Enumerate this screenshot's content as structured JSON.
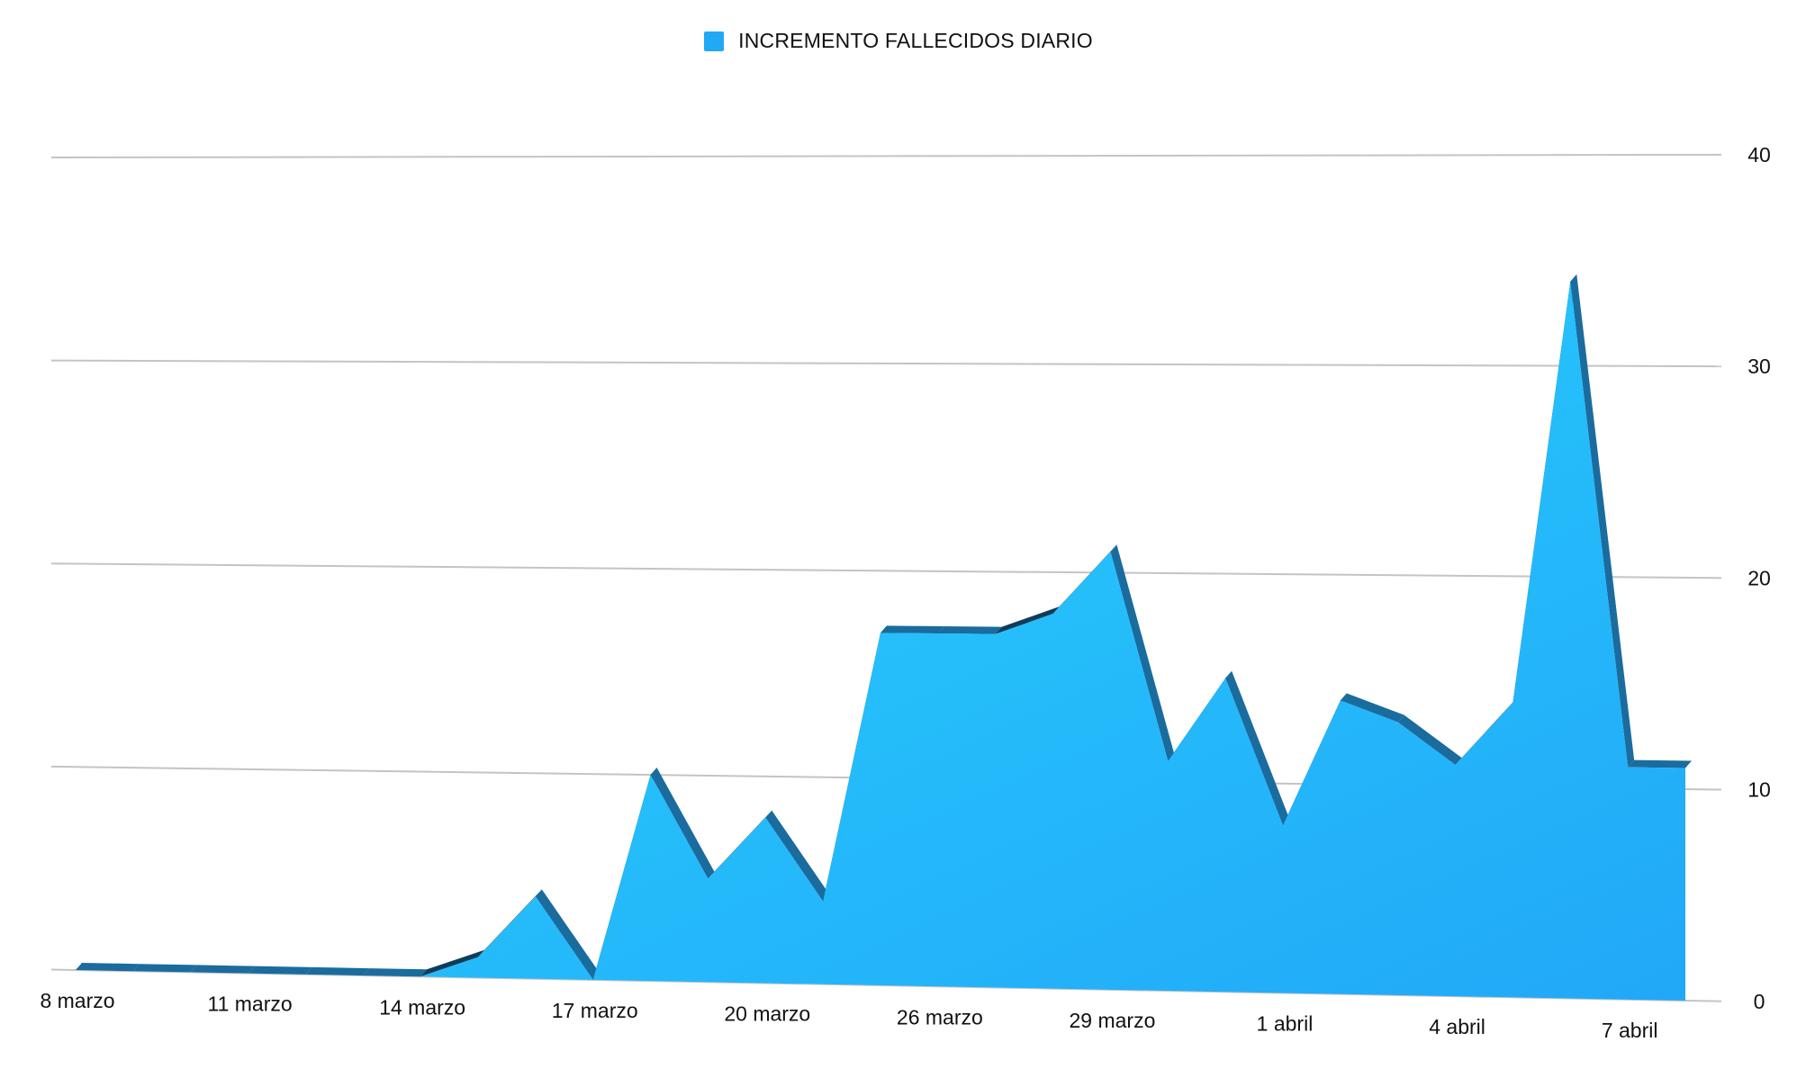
{
  "chart_data": {
    "type": "area",
    "legend": {
      "position": "top-center",
      "entries": [
        "INCREMENTO FALLECIDOS DIARIO"
      ]
    },
    "series": [
      {
        "name": "INCREMENTO FALLECIDOS DIARIO",
        "values": [
          0,
          0,
          0,
          0,
          0,
          0,
          0,
          1,
          4,
          0,
          10,
          5,
          8,
          4,
          17,
          17,
          17,
          18,
          21,
          11,
          15,
          8,
          14,
          13,
          11,
          14,
          34,
          11,
          11
        ]
      }
    ],
    "x_tick_labels": [
      "8 marzo",
      "11 marzo",
      "14 marzo",
      "17 marzo",
      "20 marzo",
      "26 marzo",
      "29 marzo",
      "1 abril",
      "4 abril",
      "7 abril"
    ],
    "x_tick_index": [
      0,
      3,
      6,
      9,
      12,
      15,
      18,
      21,
      24,
      27
    ],
    "y_ticks": [
      0,
      10,
      20,
      30,
      40
    ],
    "ylim": [
      0,
      40
    ],
    "y_axis_side": "right",
    "grid": true,
    "colors": {
      "area_top": "#2ad2ff",
      "area_bottom": "#21a9f8",
      "ridge": "#1a6c9e",
      "ridge_dark": "#0e3d5c",
      "grid": "#c4c4c4",
      "legend_swatch": "#22a9f5"
    }
  }
}
